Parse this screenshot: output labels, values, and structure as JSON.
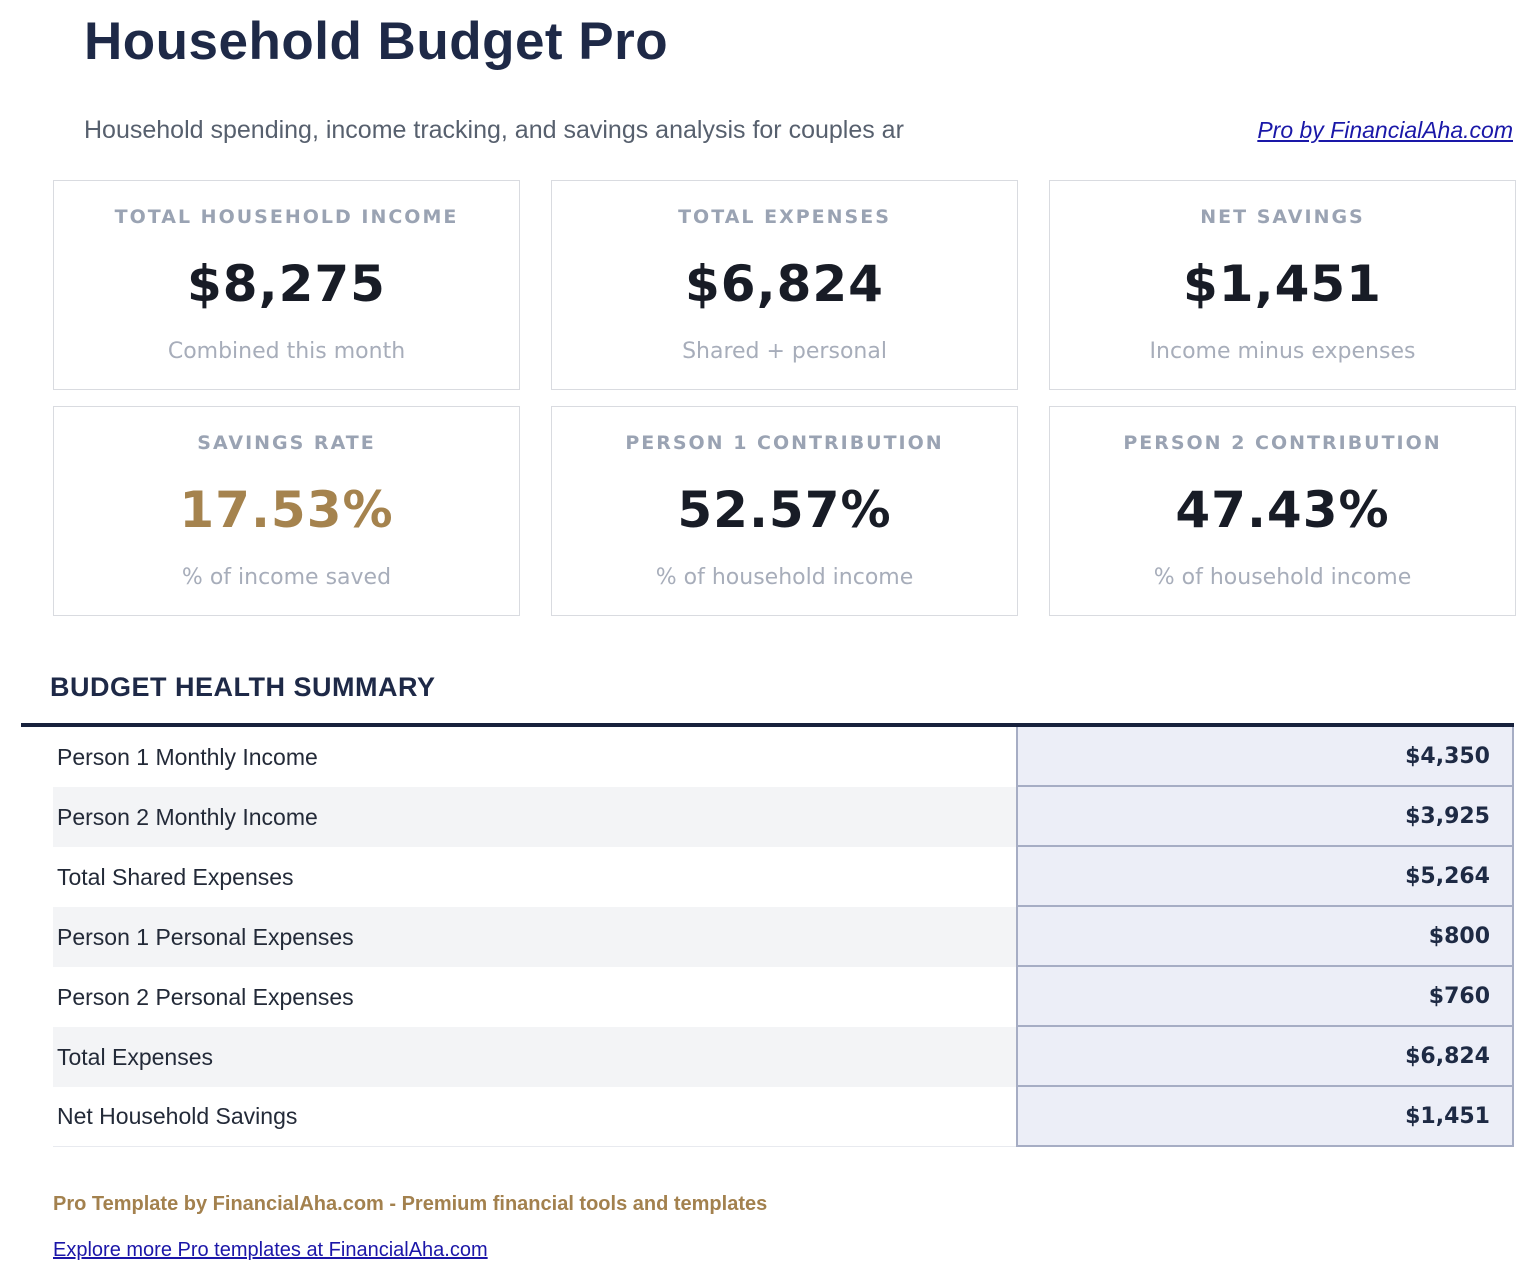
{
  "header": {
    "title": "Household Budget Pro",
    "subtitle": "Household spending, income tracking, and savings analysis for couples ar",
    "pro_link": "Pro by FinancialAha.com"
  },
  "cards": [
    {
      "label": "TOTAL HOUSEHOLD INCOME",
      "value": "$8,275",
      "sub": "Combined this month",
      "accent": "dark"
    },
    {
      "label": "TOTAL EXPENSES",
      "value": "$6,824",
      "sub": "Shared + personal",
      "accent": "dark"
    },
    {
      "label": "NET SAVINGS",
      "value": "$1,451",
      "sub": "Income minus expenses",
      "accent": "dark"
    },
    {
      "label": "SAVINGS RATE",
      "value": "17.53%",
      "sub": "% of income saved",
      "accent": "gold"
    },
    {
      "label": "PERSON 1 CONTRIBUTION",
      "value": "52.57%",
      "sub": "% of household income",
      "accent": "dark"
    },
    {
      "label": "PERSON 2 CONTRIBUTION",
      "value": "47.43%",
      "sub": "% of household income",
      "accent": "dark"
    }
  ],
  "summary": {
    "heading": "BUDGET HEALTH SUMMARY",
    "rows": [
      {
        "label": "Person 1 Monthly Income",
        "value": "$4,350"
      },
      {
        "label": "Person 2 Monthly Income",
        "value": "$3,925"
      },
      {
        "label": "Total Shared Expenses",
        "value": "$5,264"
      },
      {
        "label": "Person 1 Personal Expenses",
        "value": "$800"
      },
      {
        "label": "Person 2 Personal Expenses",
        "value": "$760"
      },
      {
        "label": "Total Expenses",
        "value": "$6,824"
      },
      {
        "label": "Net Household Savings",
        "value": "$1,451"
      }
    ]
  },
  "footer": {
    "tagline": "Pro Template by FinancialAha.com - Premium financial tools and templates",
    "explore_link": "Explore more Pro templates at FinancialAha.com"
  },
  "colors": {
    "navy": "#1e2947",
    "gold": "#a5834e",
    "link_blue": "#1a18a8",
    "value_cell_bg": "#eceef7",
    "cell_border": "#a6adc4",
    "row_stripe": "#f3f4f6",
    "card_label_gray": "#9aa3b3"
  }
}
